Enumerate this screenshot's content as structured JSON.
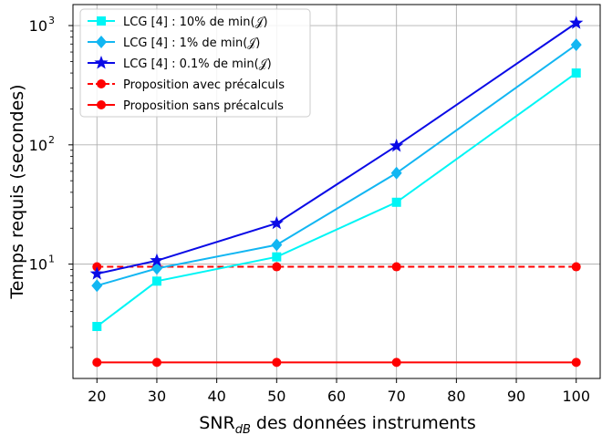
{
  "chart_data": {
    "type": "line",
    "xlabel": "SNR",
    "xlabel_sub": "dB",
    "xlabel_rest": " des données instruments",
    "ylabel": "Temps requis (secondes)",
    "xscale": "linear",
    "yscale": "log",
    "xlim": [
      16,
      104
    ],
    "ylim": [
      1.1,
      1500
    ],
    "grid": true,
    "legend_position": "top-left",
    "x_ticks": [
      20,
      30,
      40,
      50,
      60,
      70,
      80,
      90,
      100
    ],
    "y_ticks": [
      {
        "value": 10,
        "base": "10",
        "exp": "1"
      },
      {
        "value": 100,
        "base": "10",
        "exp": "2"
      },
      {
        "value": 1000,
        "base": "10",
        "exp": "3"
      }
    ],
    "x": [
      20,
      30,
      50,
      70,
      100
    ],
    "series": [
      {
        "name": "LCG [4] : 10% de min(𝒥)",
        "color": "#00f5f5",
        "marker": "square",
        "linestyle": "solid",
        "values": [
          3.0,
          7.2,
          11.5,
          33,
          400
        ]
      },
      {
        "name": "LCG [4] : 1% de min(𝒥)",
        "color": "#12b6f2",
        "marker": "diamond",
        "linestyle": "solid",
        "values": [
          6.6,
          9.2,
          14.5,
          58,
          690
        ]
      },
      {
        "name": "LCG [4] : 0.1% de min(𝒥)",
        "color": "#0a0ae6",
        "marker": "star",
        "linestyle": "solid",
        "values": [
          8.3,
          10.7,
          22,
          98,
          1050
        ]
      },
      {
        "name": "Proposition avec précalculs",
        "color": "#ff0000",
        "marker": "circle",
        "linestyle": "dashed",
        "values": [
          9.5,
          9.5,
          9.5,
          9.5,
          9.5
        ]
      },
      {
        "name": "Proposition sans précalculs",
        "color": "#ff0000",
        "marker": "circle",
        "linestyle": "solid",
        "values": [
          1.5,
          1.5,
          1.5,
          1.5,
          1.5
        ]
      }
    ]
  }
}
